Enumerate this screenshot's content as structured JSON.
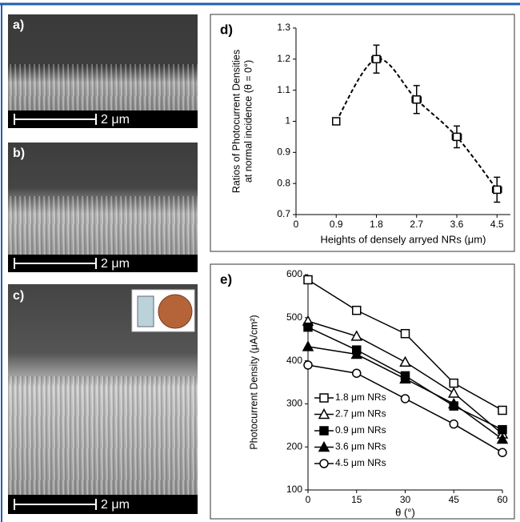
{
  "panels": [
    {
      "label": "a)",
      "scale_bar": "2 μm"
    },
    {
      "label": "b)",
      "scale_bar": "2 μm"
    },
    {
      "label": "c)",
      "scale_bar": "2 μm"
    }
  ],
  "chart_data": [
    {
      "type": "scatter",
      "panel_label": "d)",
      "ylabel": [
        "Ratios of Photocurrent Densities",
        "at normal incidence (θ = 0°)"
      ],
      "xlabel": "Heights of densely arryed NRs (μm)",
      "x": [
        0.9,
        1.8,
        2.7,
        3.6,
        4.5
      ],
      "values": [
        1.0,
        1.2,
        1.07,
        0.95,
        0.78
      ],
      "yerr": [
        0,
        0.045,
        0.045,
        0.035,
        0.04
      ],
      "xerr": [
        0.05,
        0.1,
        0.1,
        0.1,
        0.1
      ],
      "color": "#000000",
      "trendline": true,
      "xlim": [
        0,
        4.8
      ],
      "xticks": [
        0,
        0.9,
        1.8,
        2.7,
        3.6,
        4.5
      ],
      "ylim": [
        0.7,
        1.3
      ],
      "yticks": [
        0.7,
        0.8,
        0.9,
        1,
        1.1,
        1.2,
        1.3
      ]
    },
    {
      "type": "line",
      "panel_label": "e)",
      "ylabel": "Photocurrent Density  (μA/cm²)",
      "xlabel": "θ (°)",
      "x": [
        0,
        15,
        30,
        45,
        60
      ],
      "series": [
        {
          "name": "1.8 μm NRs",
          "color": "#000000",
          "marker": "square",
          "filled": false,
          "values": [
            588,
            517,
            463,
            348,
            285
          ]
        },
        {
          "name": "2.7 μm NRs",
          "color": "#000000",
          "marker": "triangle",
          "filled": false,
          "values": [
            492,
            457,
            397,
            325,
            230
          ]
        },
        {
          "name": "0.9 μm NRs",
          "color": "#000000",
          "marker": "square",
          "filled": true,
          "values": [
            478,
            425,
            365,
            295,
            240
          ]
        },
        {
          "name": "3.6 μm NRs",
          "color": "#000000",
          "marker": "triangle",
          "filled": true,
          "values": [
            433,
            415,
            358,
            300,
            218
          ]
        },
        {
          "name": "4.5 μm NRs",
          "color": "#000000",
          "marker": "circle",
          "filled": false,
          "values": [
            390,
            371,
            312,
            253,
            187
          ]
        }
      ],
      "legend": "left",
      "xlim": [
        0,
        60
      ],
      "xticks": [
        0,
        15,
        30,
        45,
        60
      ],
      "ylim": [
        100,
        600
      ],
      "yticks": [
        100,
        200,
        300,
        400,
        500,
        600
      ]
    }
  ]
}
